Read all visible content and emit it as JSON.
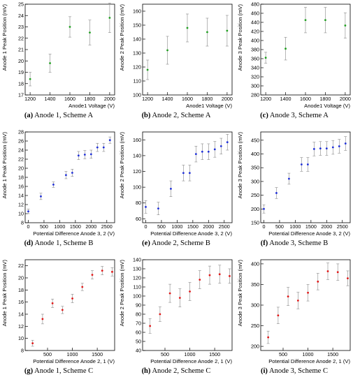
{
  "figure": {
    "panels": [
      {
        "letter": "(a)",
        "caption_text": " Anode 1, Scheme A"
      },
      {
        "letter": "(b)",
        "caption_text": " Anode 2, Scheme A"
      },
      {
        "letter": "(c)",
        "caption_text": " Anode 3, Scheme A"
      },
      {
        "letter": "(d)",
        "caption_text": " Anode 1, Scheme B"
      },
      {
        "letter": "(e)",
        "caption_text": " Anode 2, Scheme B"
      },
      {
        "letter": "(f)",
        "caption_text": " Anode 3, Scheme B"
      },
      {
        "letter": "(g)",
        "caption_text": " Anode 1, Scheme C"
      },
      {
        "letter": "(h)",
        "caption_text": " Anode 2, Scheme C"
      },
      {
        "letter": "(i)",
        "caption_text": " Anode 3, Scheme C"
      }
    ]
  },
  "chart_data": [
    {
      "type": "scatter",
      "title": "",
      "marker_color": "#1fa01f",
      "xlabel": "Anode1 Voltage (V)",
      "ylabel": "Anode 1 Peak Position (mV)",
      "xlim": [
        1150,
        2050
      ],
      "ylim": [
        17,
        25
      ],
      "xticks": [
        1200,
        1400,
        1600,
        1800,
        2000
      ],
      "yticks": [
        17,
        18,
        19,
        20,
        21,
        22,
        23,
        24,
        25
      ],
      "series": [
        {
          "x": [
            1200,
            1400,
            1600,
            1800,
            2000
          ],
          "y": [
            18.4,
            19.8,
            23.0,
            22.5,
            23.8
          ],
          "err": [
            0.6,
            0.8,
            0.9,
            1.1,
            1.3
          ]
        }
      ]
    },
    {
      "type": "scatter",
      "title": "",
      "marker_color": "#1fa01f",
      "xlabel": "Anode1 Voltage (V)",
      "ylabel": "Anode 2 Peak Position (mV)",
      "xlim": [
        1150,
        2050
      ],
      "ylim": [
        100,
        165
      ],
      "xticks": [
        1200,
        1400,
        1600,
        1800,
        2000
      ],
      "yticks": [
        100,
        110,
        120,
        130,
        140,
        150,
        160
      ],
      "series": [
        {
          "x": [
            1200,
            1400,
            1600,
            1800,
            2000
          ],
          "y": [
            118,
            132,
            148,
            145,
            146
          ],
          "err": [
            7,
            10,
            10,
            10,
            11
          ]
        }
      ]
    },
    {
      "type": "scatter",
      "title": "",
      "marker_color": "#1fa01f",
      "xlabel": "Anode1 Voltage (V)",
      "ylabel": "Anode 3 Peak Position (mV)",
      "xlim": [
        1150,
        2050
      ],
      "ylim": [
        280,
        480
      ],
      "xticks": [
        1200,
        1400,
        1600,
        1800,
        2000
      ],
      "yticks": [
        280,
        300,
        320,
        340,
        360,
        380,
        400,
        420,
        440,
        460,
        480
      ],
      "series": [
        {
          "x": [
            1200,
            1400,
            1600,
            1800,
            2000
          ],
          "y": [
            362,
            382,
            445,
            445,
            433
          ],
          "err": [
            12,
            25,
            28,
            28,
            28
          ]
        }
      ]
    },
    {
      "type": "scatter",
      "title": "",
      "marker_color": "#1f2fd8",
      "xlabel": "Potential Difference Anode 3, 2 (V)",
      "ylabel": "Anode 1 Peak Position (mV)",
      "xlim": [
        -100,
        2750
      ],
      "ylim": [
        8,
        28
      ],
      "xticks": [
        0,
        500,
        1000,
        1500,
        2000,
        2500
      ],
      "yticks": [
        8,
        10,
        12,
        14,
        16,
        18,
        20,
        22,
        24,
        26,
        28
      ],
      "series": [
        {
          "x": [
            0,
            400,
            800,
            1200,
            1400,
            1600,
            1800,
            2000,
            2200,
            2400,
            2600
          ],
          "y": [
            10.5,
            13.8,
            16.4,
            18.5,
            19.0,
            22.8,
            23.0,
            23.1,
            24.6,
            24.6,
            26.2
          ],
          "err": [
            0.5,
            0.7,
            0.6,
            0.8,
            0.8,
            0.9,
            0.9,
            0.9,
            0.9,
            0.9,
            0.7
          ]
        }
      ]
    },
    {
      "type": "scatter",
      "title": "",
      "marker_color": "#1f2fd8",
      "xlabel": "Potential Difference Anode 3, 2 (V)",
      "ylabel": "Anode 2 Peak Position (mV)",
      "xlim": [
        -100,
        2750
      ],
      "ylim": [
        55,
        170
      ],
      "xticks": [
        0,
        500,
        1000,
        1500,
        2000,
        2500
      ],
      "yticks": [
        60,
        80,
        100,
        120,
        140,
        160
      ],
      "series": [
        {
          "x": [
            0,
            400,
            800,
            1200,
            1400,
            1600,
            1800,
            2000,
            2200,
            2400,
            2600
          ],
          "y": [
            75,
            73,
            98,
            118,
            118,
            142,
            145,
            145,
            148,
            152,
            157
          ],
          "err": [
            8,
            8,
            10,
            10,
            10,
            10,
            10,
            10,
            10,
            10,
            10
          ]
        }
      ]
    },
    {
      "type": "scatter",
      "title": "",
      "marker_color": "#1f2fd8",
      "xlabel": "Potential Difference Anode 3, 2 (V)",
      "ylabel": "Anode 3 Peak Position (mV)",
      "xlim": [
        -100,
        2750
      ],
      "ylim": [
        150,
        480
      ],
      "xticks": [
        0,
        500,
        1000,
        1500,
        2000,
        2500
      ],
      "yticks": [
        150,
        200,
        250,
        300,
        350,
        400,
        450
      ],
      "series": [
        {
          "x": [
            0,
            400,
            800,
            1200,
            1400,
            1600,
            1800,
            2000,
            2200,
            2400,
            2600
          ],
          "y": [
            200,
            258,
            310,
            362,
            362,
            418,
            420,
            420,
            424,
            428,
            438
          ],
          "err": [
            15,
            20,
            20,
            25,
            25,
            25,
            25,
            25,
            25,
            25,
            25
          ]
        }
      ]
    },
    {
      "type": "scatter",
      "title": "",
      "marker_color": "#e01818",
      "xlabel": "Potential Difference Anode 2, 1 (V)",
      "ylabel": "Anode 1 Peak Position (mV)",
      "xlim": [
        50,
        1850
      ],
      "ylim": [
        8,
        23
      ],
      "xticks": [
        500,
        1000,
        1500
      ],
      "yticks": [
        8,
        10,
        12,
        14,
        16,
        18,
        20,
        22
      ],
      "series": [
        {
          "x": [
            200,
            400,
            600,
            800,
            1000,
            1200,
            1400,
            1600,
            1800
          ],
          "y": [
            9.2,
            13.2,
            15.8,
            14.7,
            16.6,
            18.5,
            20.5,
            21.2,
            21.0
          ],
          "err": [
            0.5,
            0.8,
            0.7,
            0.6,
            0.7,
            0.6,
            0.7,
            0.7,
            0.7
          ]
        }
      ]
    },
    {
      "type": "scatter",
      "title": "",
      "marker_color": "#e01818",
      "xlabel": "Potential Difference Anode 2, 1 (V)",
      "ylabel": "Anode 2 Peak Position (mV)",
      "xlim": [
        50,
        1850
      ],
      "ylim": [
        40,
        140
      ],
      "xticks": [
        500,
        1000,
        1500
      ],
      "yticks": [
        40,
        50,
        60,
        70,
        80,
        90,
        100,
        110,
        120,
        130,
        140
      ],
      "series": [
        {
          "x": [
            200,
            400,
            600,
            800,
            1000,
            1200,
            1400,
            1600,
            1800
          ],
          "y": [
            67,
            80,
            103,
            98,
            105,
            118,
            123,
            124,
            122
          ],
          "err": [
            8,
            8,
            10,
            10,
            10,
            10,
            10,
            10,
            8
          ]
        }
      ]
    },
    {
      "type": "scatter",
      "title": "",
      "marker_color": "#e01818",
      "xlabel": "Potential Difference Anode 2, 1 (V)",
      "ylabel": "Anode 3 Peak Position (mV)",
      "xlim": [
        50,
        1850
      ],
      "ylim": [
        190,
        410
      ],
      "xticks": [
        500,
        1000,
        1500
      ],
      "yticks": [
        200,
        250,
        300,
        350,
        400
      ],
      "series": [
        {
          "x": [
            200,
            400,
            600,
            800,
            1000,
            1200,
            1400,
            1600,
            1800
          ],
          "y": [
            222,
            275,
            321,
            311,
            330,
            357,
            382,
            380,
            365
          ],
          "err": [
            15,
            20,
            22,
            20,
            20,
            20,
            20,
            20,
            18
          ]
        }
      ]
    }
  ]
}
